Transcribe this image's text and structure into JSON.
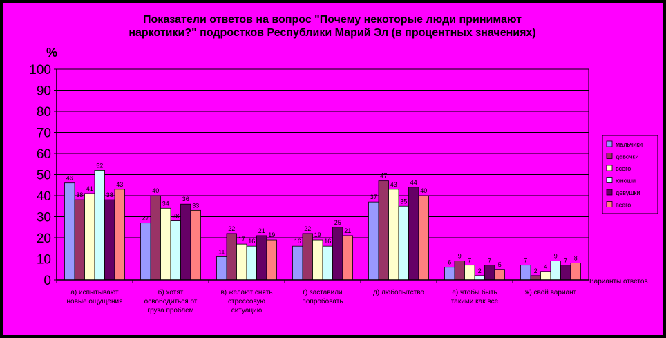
{
  "chart_data": {
    "type": "bar",
    "title": [
      "Показатели ответов на вопрос \"Почему некоторые люди принимают",
      "наркотики?\" подростков Республики Марий Эл (в процентных значениях)"
    ],
    "ylabel": "%",
    "xlabel": "Варианты ответов",
    "ylim": [
      0,
      100
    ],
    "yticks": [
      0,
      10,
      20,
      30,
      40,
      50,
      60,
      70,
      80,
      90,
      100
    ],
    "grid": true,
    "legend_position": "right",
    "categories": [
      [
        "а) испытывают",
        "новые ощущения"
      ],
      [
        "б) хотят",
        "освободиться от",
        "груза проблем"
      ],
      [
        "в) желают снять",
        "стрессовую",
        "ситуацию"
      ],
      [
        "г) заставили",
        "попробовать"
      ],
      [
        "д) любопытство"
      ],
      [
        "е) чтобы быть",
        "такими как все"
      ],
      [
        "ж) свой вариант"
      ]
    ],
    "series": [
      {
        "name": "мальчики",
        "color": "#9999FF",
        "values": [
          46,
          27,
          11,
          16,
          37,
          6,
          7
        ]
      },
      {
        "name": "девочки",
        "color": "#993366",
        "values": [
          38,
          40,
          22,
          22,
          47,
          9,
          2
        ]
      },
      {
        "name": "всего",
        "color": "#FFFFCC",
        "values": [
          41,
          34,
          17,
          19,
          43,
          7,
          4
        ]
      },
      {
        "name": "юноши",
        "color": "#CCFFFF",
        "values": [
          52,
          28,
          16,
          16,
          35,
          2,
          9
        ]
      },
      {
        "name": "девушки",
        "color": "#660066",
        "values": [
          38,
          36,
          21,
          25,
          44,
          7,
          7
        ]
      },
      {
        "name": "всего",
        "color": "#FF8080",
        "values": [
          43,
          33,
          19,
          21,
          40,
          5,
          8
        ]
      }
    ]
  }
}
